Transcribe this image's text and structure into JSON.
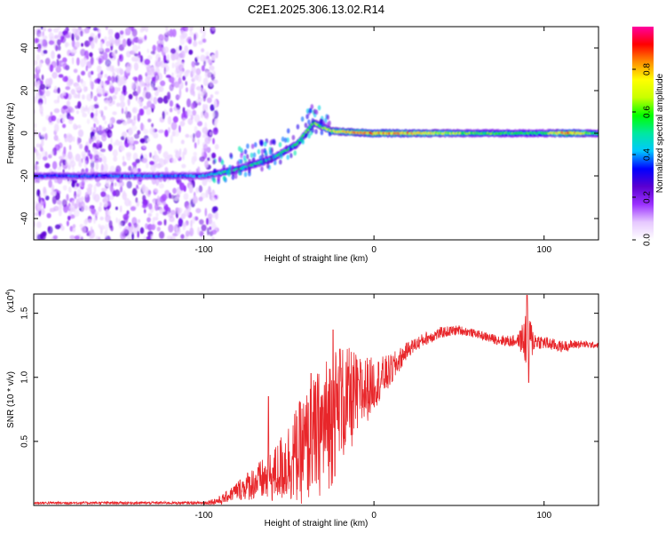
{
  "chart_data": [
    {
      "type": "heatmap",
      "title": "C2E1.2025.306.13.02.R14",
      "xlabel": "Height of straight line (km)",
      "ylabel": "Frequency (Hz)",
      "xlim": [
        -200,
        132
      ],
      "ylim": [
        -50,
        50
      ],
      "x_ticks": [
        -100,
        0,
        100
      ],
      "y_ticks": [
        -40,
        -20,
        0,
        20,
        40
      ],
      "colorbar": {
        "label": "Normalized spectral amplitude",
        "range": [
          0,
          1
        ],
        "ticks": [
          0.0,
          0.2,
          0.4,
          0.6,
          0.8
        ],
        "tick_labels": [
          "0.0",
          "0.2",
          "0.4",
          "0.6",
          "0.8"
        ],
        "colors": [
          "#ffffff",
          "#e6c8ff",
          "#9b30ff",
          "#5a00d0",
          "#0000ff",
          "#00c8ff",
          "#00e8a0",
          "#00ff00",
          "#c8ff00",
          "#ffff00",
          "#ff9000",
          "#ff0000",
          "#ff00a0"
        ]
      },
      "noise_region_x": [
        -200,
        -92
      ],
      "ridge": [
        {
          "x": -200,
          "f": -20
        },
        {
          "x": -100,
          "f": -20
        },
        {
          "x": -80,
          "f": -17
        },
        {
          "x": -60,
          "f": -12
        },
        {
          "x": -45,
          "f": -5
        },
        {
          "x": -35,
          "f": 5
        },
        {
          "x": -25,
          "f": 1
        },
        {
          "x": 0,
          "f": 0
        },
        {
          "x": 50,
          "f": 0
        },
        {
          "x": 100,
          "f": 0
        },
        {
          "x": 132,
          "f": 0
        }
      ],
      "ridge_amplitude": [
        {
          "x": -200,
          "a": 0.35
        },
        {
          "x": -100,
          "a": 0.4
        },
        {
          "x": -80,
          "a": 0.55
        },
        {
          "x": -60,
          "a": 0.5
        },
        {
          "x": -45,
          "a": 0.55
        },
        {
          "x": -35,
          "a": 0.6
        },
        {
          "x": -20,
          "a": 0.75
        },
        {
          "x": 0,
          "a": 0.85
        },
        {
          "x": 20,
          "a": 0.8
        },
        {
          "x": 60,
          "a": 0.6
        },
        {
          "x": 100,
          "a": 0.55
        },
        {
          "x": 115,
          "a": 0.9
        },
        {
          "x": 132,
          "a": 0.5
        }
      ]
    },
    {
      "type": "line",
      "xlabel": "Height of straight line (km)",
      "ylabel": "SNR (10 * v/v)",
      "y_multiplier": "(x10",
      "y_multiplier_exponent": "4",
      "y_multiplier_close": ")",
      "xlim": [
        -200,
        132
      ],
      "ylim": [
        0,
        1.65
      ],
      "x_ticks": [
        -100,
        0,
        100
      ],
      "y_ticks": [
        0.5,
        1.0,
        1.5
      ],
      "y_tick_labels": [
        "0.5",
        "1.0",
        "1.5"
      ],
      "color": "#e8262a",
      "envelope": [
        {
          "x": -200,
          "y": 0.02
        },
        {
          "x": -100,
          "y": 0.02
        },
        {
          "x": -90,
          "y": 0.04
        },
        {
          "x": -80,
          "y": 0.12
        },
        {
          "x": -70,
          "y": 0.18
        },
        {
          "x": -60,
          "y": 0.22
        },
        {
          "x": -50,
          "y": 0.35
        },
        {
          "x": -40,
          "y": 0.45
        },
        {
          "x": -30,
          "y": 0.6
        },
        {
          "x": -20,
          "y": 0.78
        },
        {
          "x": -10,
          "y": 0.85
        },
        {
          "x": 0,
          "y": 0.95
        },
        {
          "x": 10,
          "y": 1.05
        },
        {
          "x": 20,
          "y": 1.22
        },
        {
          "x": 30,
          "y": 1.3
        },
        {
          "x": 40,
          "y": 1.35
        },
        {
          "x": 50,
          "y": 1.37
        },
        {
          "x": 60,
          "y": 1.34
        },
        {
          "x": 70,
          "y": 1.3
        },
        {
          "x": 80,
          "y": 1.28
        },
        {
          "x": 90,
          "y": 1.3
        },
        {
          "x": 100,
          "y": 1.27
        },
        {
          "x": 110,
          "y": 1.24
        },
        {
          "x": 120,
          "y": 1.26
        },
        {
          "x": 132,
          "y": 1.25
        }
      ],
      "noise_amplitude": [
        {
          "x": -200,
          "a": 0.01
        },
        {
          "x": -100,
          "a": 0.01
        },
        {
          "x": -85,
          "a": 0.05
        },
        {
          "x": -60,
          "a": 0.2
        },
        {
          "x": -40,
          "a": 0.45
        },
        {
          "x": -25,
          "a": 0.55
        },
        {
          "x": -10,
          "a": 0.35
        },
        {
          "x": 0,
          "a": 0.2
        },
        {
          "x": 20,
          "a": 0.06
        },
        {
          "x": 60,
          "a": 0.03
        },
        {
          "x": 85,
          "a": 0.05
        },
        {
          "x": 90,
          "a": 0.25
        },
        {
          "x": 95,
          "a": 0.06
        },
        {
          "x": 132,
          "a": 0.02
        }
      ],
      "spikes": [
        {
          "x": -62,
          "y": 0.85
        },
        {
          "x": -37,
          "y": 1.03
        },
        {
          "x": -24,
          "y": 1.37
        },
        {
          "x": -20,
          "y": 1.22
        },
        {
          "x": -9,
          "y": 0.98
        },
        {
          "x": 90,
          "y": 1.64
        },
        {
          "x": 91,
          "y": 0.96
        }
      ]
    }
  ]
}
